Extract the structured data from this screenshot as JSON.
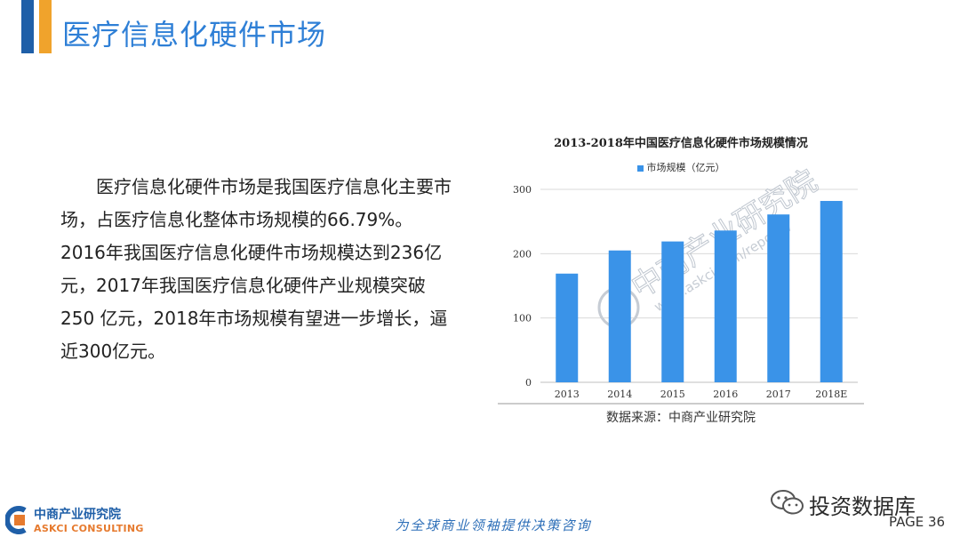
{
  "header": {
    "title": "医疗信息化硬件市场",
    "accent_dark": "#1f5fa8",
    "accent_light": "#f0a32c"
  },
  "body": {
    "paragraph": "医疗信息化硬件市场是我国医疗信息化主要市场，占医疗信息化整体市场规模的66.79%。2016年我国医疗信息化硬件市场规模达到236亿元，2017年我国医疗信息化硬件产业规模突破250 亿元，2018年市场规模有望进一步增长，逼近300亿元。"
  },
  "chart_data": {
    "type": "bar",
    "title": "2013-2018年中国医疗信息化硬件市场规模情况",
    "categories": [
      "2013",
      "2014",
      "2015",
      "2016",
      "2017",
      "2018E"
    ],
    "series": [
      {
        "name": "市场规模（亿元）",
        "values": [
          169,
          205,
          219,
          236,
          261,
          282
        ],
        "color": "#3a93e8"
      }
    ],
    "yticks": [
      "0",
      "100",
      "200",
      "300"
    ],
    "ylim": [
      0,
      300
    ],
    "xlabel": "",
    "ylabel": "",
    "grid": true,
    "legend_position": "top"
  },
  "chart": {
    "source": "数据来源：中商产业研究院",
    "watermark_cn": "中商产业研究院",
    "watermark_url": "www.askci.com/reports/"
  },
  "footer": {
    "logo_cn": "中商产业研究院",
    "logo_en": "ASKCI CONSULTING",
    "slogan": "为全球商业领袖提供决策咨询",
    "wechat_name": "投资数据库",
    "page": "PAGE  36"
  }
}
